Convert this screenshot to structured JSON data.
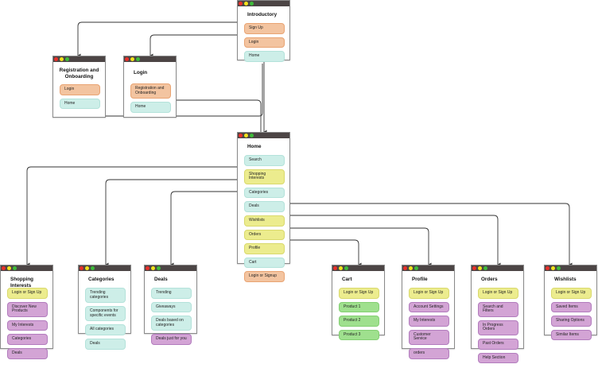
{
  "colors": {
    "header_bar": "#4c4545",
    "dot_red": "#e8302a",
    "dot_yellow": "#f2e21b",
    "dot_green": "#3dbb3a",
    "orange": "#f3c4a0",
    "teal": "#cdeee8",
    "yellow": "#ecec8e",
    "purple": "#d3a4d5",
    "green": "#9fe08e"
  },
  "screens": [
    {
      "id": "introductory",
      "title": "Introductory",
      "items": [
        {
          "label": "Sign Up",
          "color": "orange"
        },
        {
          "label": "Login",
          "color": "orange"
        },
        {
          "label": "Home",
          "color": "teal"
        }
      ]
    },
    {
      "id": "registration",
      "title": "Registration and Onboarding",
      "items": [
        {
          "label": "Login",
          "color": "orange"
        },
        {
          "label": "Home",
          "color": "teal"
        }
      ]
    },
    {
      "id": "login",
      "title": "Login",
      "items": [
        {
          "label": "Registration and Onboarding",
          "color": "orange"
        },
        {
          "label": "Home",
          "color": "teal"
        }
      ]
    },
    {
      "id": "home",
      "title": "Home",
      "items": [
        {
          "label": "Search",
          "color": "teal"
        },
        {
          "label": "Shopping Interests",
          "color": "yellow"
        },
        {
          "label": "Categories",
          "color": "teal"
        },
        {
          "label": "Deals",
          "color": "teal"
        },
        {
          "label": "Wishlists",
          "color": "yellow"
        },
        {
          "label": "Orders",
          "color": "yellow"
        },
        {
          "label": "Profile",
          "color": "yellow"
        },
        {
          "label": "Cart",
          "color": "teal"
        },
        {
          "label": "Login or Signup",
          "color": "orange"
        }
      ]
    },
    {
      "id": "shopping-interests",
      "title": "Shopping Interests",
      "items": [
        {
          "label": "Login or Sign Up",
          "color": "yellow"
        },
        {
          "label": "Discover New Products",
          "color": "purple"
        },
        {
          "label": "My Interests",
          "color": "purple"
        },
        {
          "label": "Categories",
          "color": "purple"
        },
        {
          "label": "Deals",
          "color": "purple"
        }
      ]
    },
    {
      "id": "categories",
      "title": "Categories",
      "items": [
        {
          "label": "Trending categories",
          "color": "teal"
        },
        {
          "label": "Components for specific events",
          "color": "teal"
        },
        {
          "label": "All categories",
          "color": "teal"
        },
        {
          "label": "Deals",
          "color": "teal"
        }
      ]
    },
    {
      "id": "deals",
      "title": "Deals",
      "items": [
        {
          "label": "Trending",
          "color": "teal"
        },
        {
          "label": "Giveaways",
          "color": "teal"
        },
        {
          "label": "Deals based on categories",
          "color": "teal"
        },
        {
          "label": "Deals just for you",
          "color": "purple"
        }
      ]
    },
    {
      "id": "cart",
      "title": "Cart",
      "items": [
        {
          "label": "Login or Sign Up",
          "color": "yellow"
        },
        {
          "label": "Product 1",
          "color": "green"
        },
        {
          "label": "Product 2",
          "color": "green"
        },
        {
          "label": "Product 3",
          "color": "green"
        }
      ]
    },
    {
      "id": "profile",
      "title": "Profile",
      "items": [
        {
          "label": "Login or Sign Up",
          "color": "yellow"
        },
        {
          "label": "Account Settings",
          "color": "purple"
        },
        {
          "label": "My Interests",
          "color": "purple"
        },
        {
          "label": "Customer Service",
          "color": "purple"
        },
        {
          "label": "orders",
          "color": "purple"
        }
      ]
    },
    {
      "id": "orders",
      "title": "Orders",
      "items": [
        {
          "label": "Login or Sign Up",
          "color": "yellow"
        },
        {
          "label": "Search and Filters",
          "color": "purple"
        },
        {
          "label": "In Progress Orders",
          "color": "purple"
        },
        {
          "label": "Past Orders",
          "color": "purple"
        },
        {
          "label": "Help Section",
          "color": "purple"
        }
      ]
    },
    {
      "id": "wishlists",
      "title": "Wishlists",
      "items": [
        {
          "label": "Login or Sign Up",
          "color": "yellow"
        },
        {
          "label": "Saved Items",
          "color": "purple"
        },
        {
          "label": "Sharing Options",
          "color": "purple"
        },
        {
          "label": "Similar Items",
          "color": "purple"
        }
      ]
    }
  ]
}
